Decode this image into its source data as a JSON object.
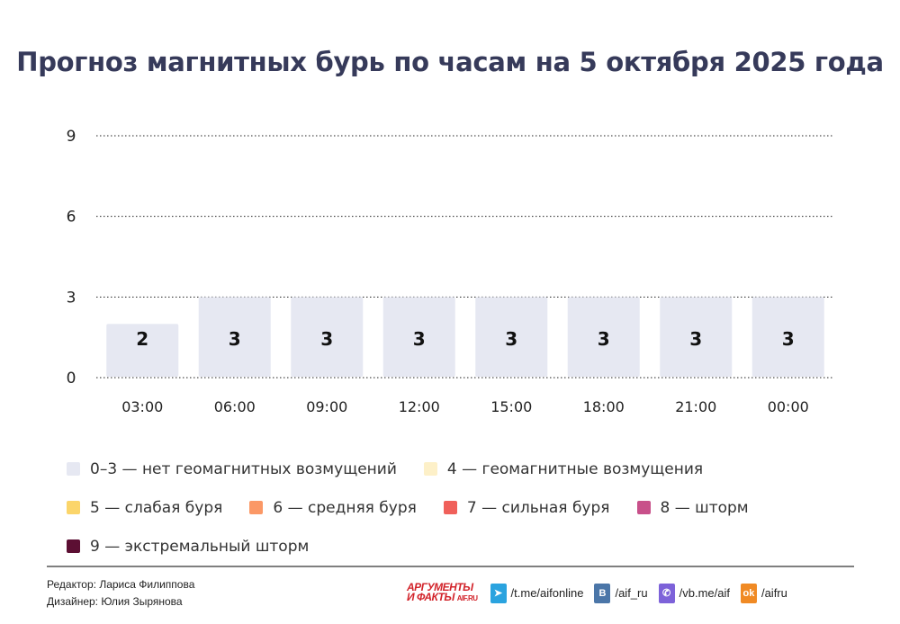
{
  "title": "Прогноз магнитных бурь по часам на 5 октября 2025 года",
  "chart_data": {
    "type": "bar",
    "title": "Прогноз магнитных бурь по часам на 5 октября 2025 года",
    "categories": [
      "03:00",
      "06:00",
      "09:00",
      "12:00",
      "15:00",
      "18:00",
      "21:00",
      "00:00"
    ],
    "values": [
      2,
      3,
      3,
      3,
      3,
      3,
      3,
      3
    ],
    "ylim": [
      0,
      9
    ],
    "yticks": [
      0,
      3,
      6,
      9
    ],
    "grid": true,
    "grid_style": "dotted",
    "bar_color": "#e6e8f2",
    "data_labels": true
  },
  "legend": [
    {
      "label": "0–3 — нет геомагнитных возмущений",
      "color": "#e6e8f2"
    },
    {
      "label": "4 — геомагнитные возмущения",
      "color": "#fdf0c8"
    },
    {
      "label": "5 — слабая буря",
      "color": "#fbd56a"
    },
    {
      "label": "6 — средняя буря",
      "color": "#fb9866"
    },
    {
      "label": "7 — сильная буря",
      "color": "#f0605a"
    },
    {
      "label": "8 — шторм",
      "color": "#c8508a"
    },
    {
      "label": "9 — экстремальный шторм",
      "color": "#5c0f33"
    }
  ],
  "footer": {
    "editor": "Редактор: Лариса Филиппова",
    "designer": "Дизайнер: Юлия Зырянова",
    "logo": {
      "line1": "АРГУМЕНТЫ",
      "line2": "И ФАКТЫ",
      "site": "AIF.RU"
    },
    "social": [
      {
        "icon": "telegram-icon",
        "label": "/t.me/aifonline",
        "color": "#2aa3df",
        "glyph": "➤"
      },
      {
        "icon": "vk-icon",
        "label": "/aif_ru",
        "color": "#4b76a8",
        "glyph": "В"
      },
      {
        "icon": "viber-icon",
        "label": "/vb.me/aif",
        "color": "#7d62d9",
        "glyph": "✆"
      },
      {
        "icon": "odnoklassniki-icon",
        "label": "/aifru",
        "color": "#f08a24",
        "glyph": "ok"
      }
    ]
  }
}
